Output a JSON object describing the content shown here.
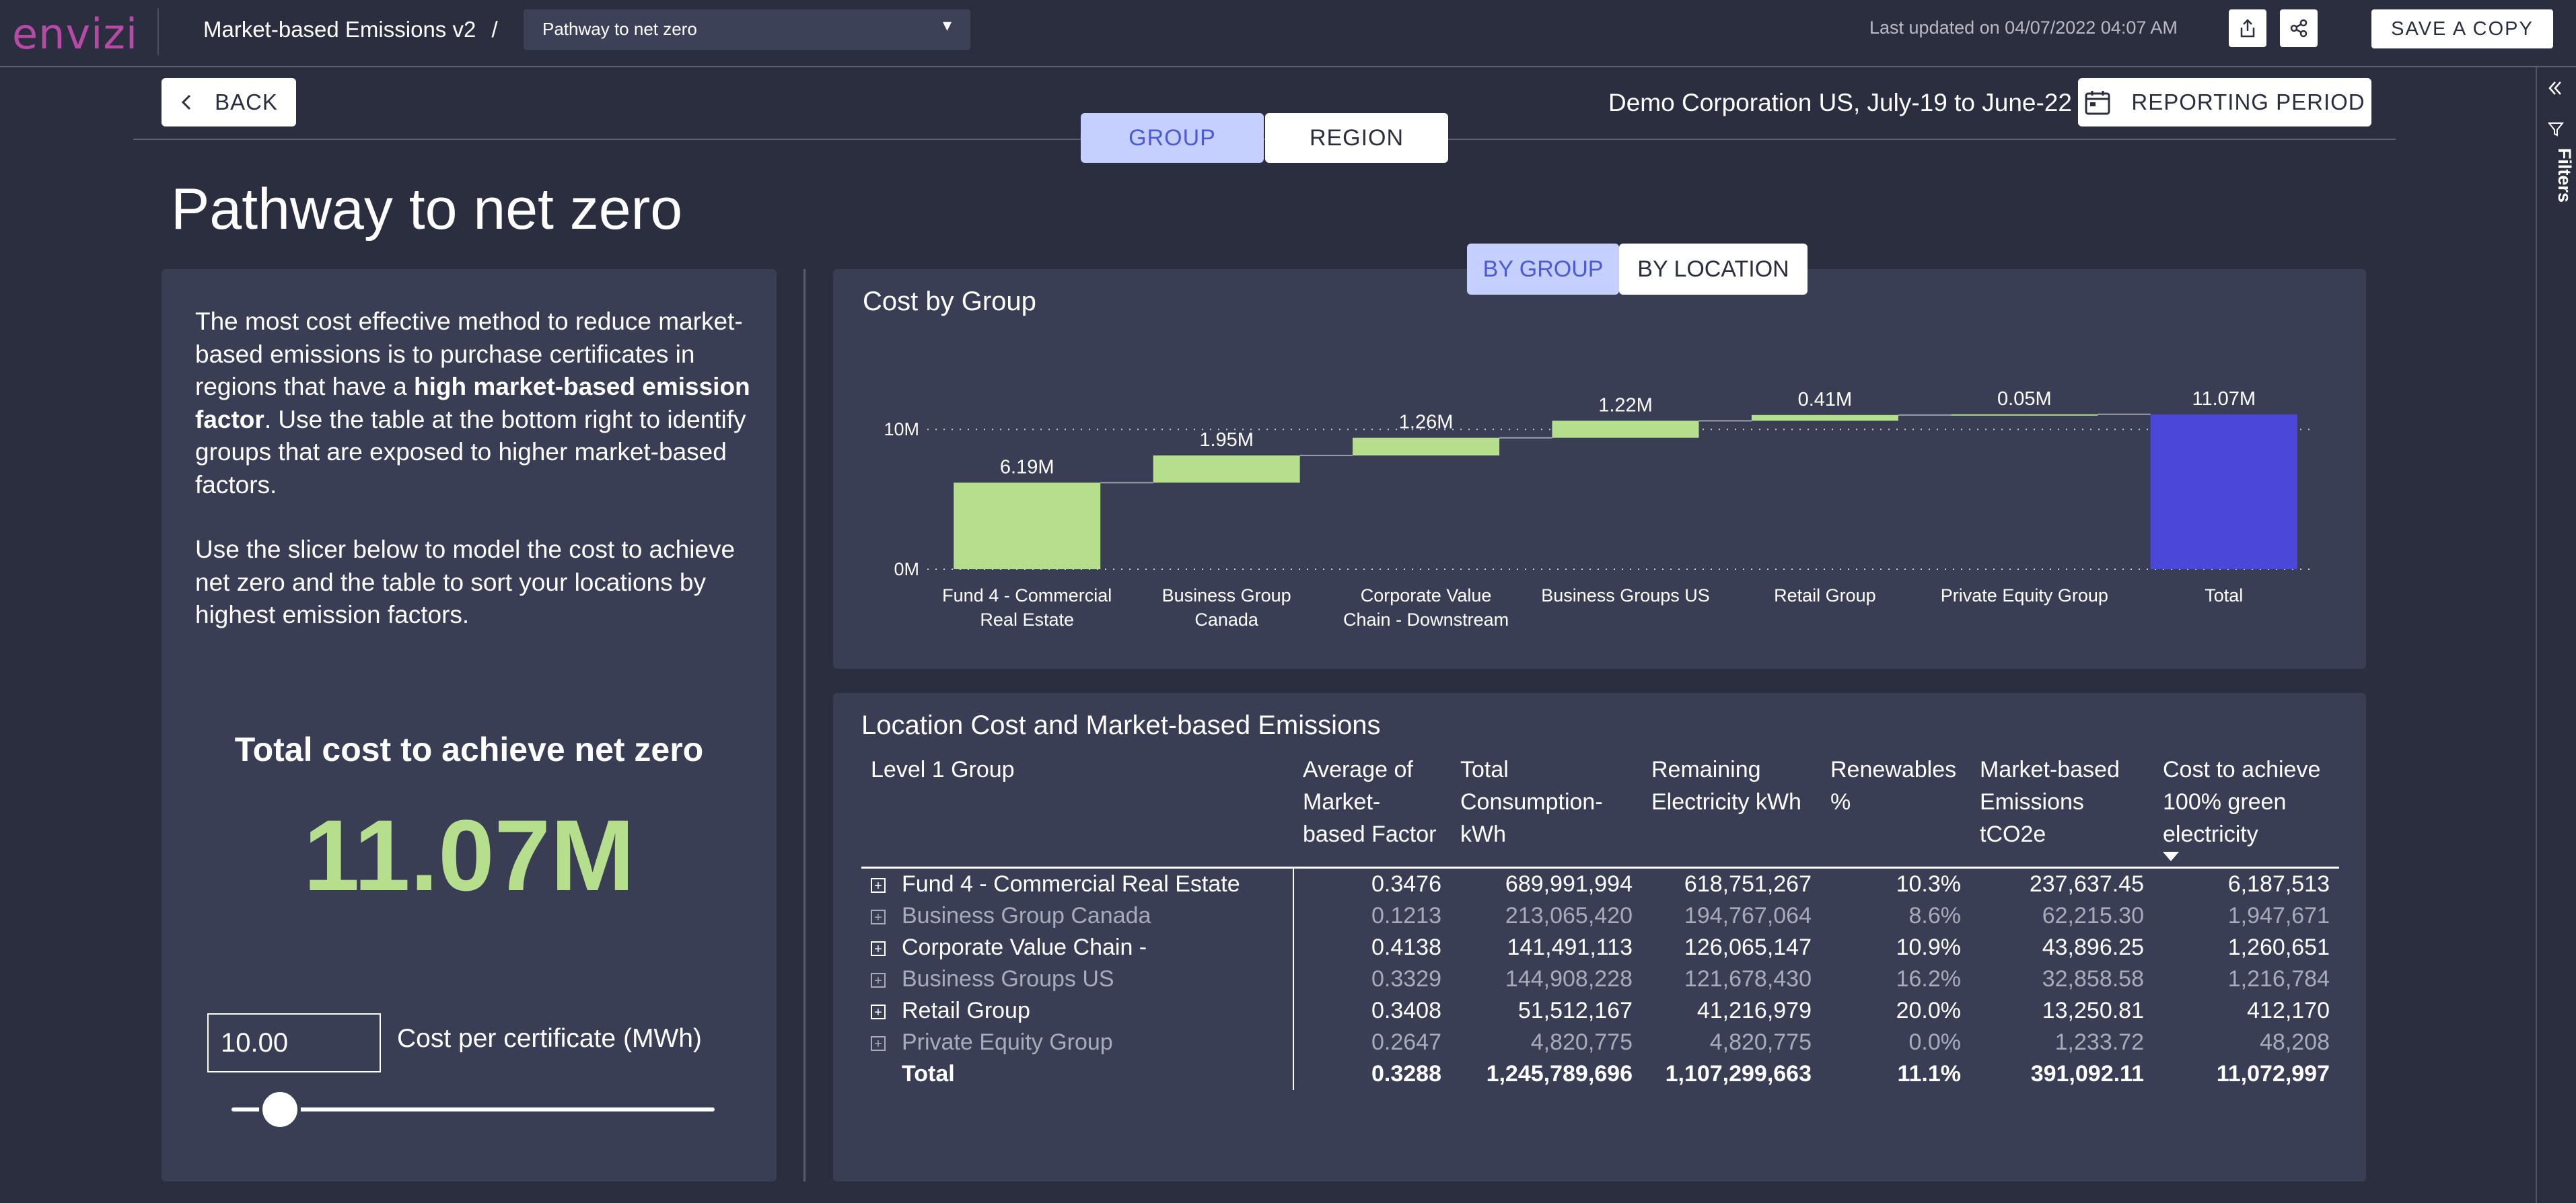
{
  "app": {
    "logo_text": "envizi",
    "report_title": "Market-based Emissions v2",
    "breadcrumb_sep": "/",
    "page_dropdown_value": "Pathway to net zero",
    "last_updated": "Last updated on 04/07/2022 04:07 AM",
    "save_copy_label": "SAVE A COPY",
    "filters_label": "Filters",
    "icons": [
      "share-icon",
      "network-share-icon",
      "collapse-pane-icon",
      "filter-icon"
    ]
  },
  "header": {
    "back_label": "BACK",
    "company_period": "Demo Corporation US, July-19 to June-22",
    "reporting_label": "REPORTING PERIOD",
    "tabs": [
      {
        "label": "GROUP",
        "active": true
      },
      {
        "label": "REGION",
        "active": false
      }
    ],
    "page_title": "Pathway to net zero"
  },
  "left_panel": {
    "intro_part1": "The most cost effective method to reduce market-based emissions is to purchase certificates in regions that have a ",
    "intro_bold": "high market-based emission factor",
    "intro_part2": ". Use the table at the bottom right to identify groups that are exposed to higher market-based factors.",
    "intro_para2": "Use the slicer below to model the cost to achieve net zero and the table to sort your locations by highest emission factors.",
    "total_title": "Total cost to achieve net zero",
    "total_value": "11.07M",
    "cost_input_value": "10.00",
    "cost_input_label": "Cost per certificate (MWh)",
    "slider_fraction": 0.1
  },
  "chart_tabs": [
    {
      "label": "BY GROUP",
      "active": true
    },
    {
      "label": "BY LOCATION",
      "active": false
    }
  ],
  "chart_data": {
    "type": "bar",
    "subtype": "waterfall",
    "title": "Cost by Group",
    "categories": [
      "Fund 4 - Commercial Real Estate",
      "Business Group Canada",
      "Corporate Value Chain - Downstream",
      "Business Groups US",
      "Retail Group",
      "Private Equity Group",
      "Total"
    ],
    "category_lines": [
      [
        "Fund 4 - Commercial",
        "Real Estate"
      ],
      [
        "Business Group",
        "Canada"
      ],
      [
        "Corporate Value",
        "Chain - Downstream"
      ],
      [
        "Business Groups US"
      ],
      [
        "Retail Group"
      ],
      [
        "Private Equity Group"
      ],
      [
        "Total"
      ]
    ],
    "values": [
      6.19,
      1.95,
      1.26,
      1.22,
      0.41,
      0.05,
      11.07
    ],
    "data_labels": [
      "6.19M",
      "1.95M",
      "1.26M",
      "1.22M",
      "0.41M",
      "0.05M",
      "11.07M"
    ],
    "unit": "M",
    "y_ticks": [
      {
        "value": 0,
        "label": "0M"
      },
      {
        "value": 10,
        "label": "10M"
      }
    ],
    "ylim": [
      0,
      12.5
    ],
    "grid": true,
    "colors": {
      "increase": "#b5df8c",
      "total": "#4b47d9"
    }
  },
  "table": {
    "title": "Location Cost and Market-based Emissions",
    "columns": [
      [
        "Level 1 Group"
      ],
      [
        "Average of",
        "Market-",
        "based Factor"
      ],
      [
        "Total",
        "Consumption-",
        "kWh"
      ],
      [
        "Remaining",
        "Electricity kWh"
      ],
      [
        "Renewables",
        "%"
      ],
      [
        "Market-based",
        "Emissions",
        "tCO2e"
      ],
      [
        "Cost to achieve",
        "100% green",
        "electricity"
      ]
    ],
    "rows": [
      {
        "name": "Fund 4 - Commercial Real Estate",
        "cells": [
          "0.3476",
          "689,991,994",
          "618,751,267",
          "10.3%",
          "237,637.45",
          "6,187,513"
        ],
        "style": "bright"
      },
      {
        "name": "Business Group Canada",
        "cells": [
          "0.1213",
          "213,065,420",
          "194,767,064",
          "8.6%",
          "62,215.30",
          "1,947,671"
        ],
        "style": "dim"
      },
      {
        "name": "Corporate Value Chain -",
        "cells": [
          "0.4138",
          "141,491,113",
          "126,065,147",
          "10.9%",
          "43,896.25",
          "1,260,651"
        ],
        "style": "bright"
      },
      {
        "name": "Business Groups US",
        "cells": [
          "0.3329",
          "144,908,228",
          "121,678,430",
          "16.2%",
          "32,858.58",
          "1,216,784"
        ],
        "style": "dim"
      },
      {
        "name": "Retail Group",
        "cells": [
          "0.3408",
          "51,512,167",
          "41,216,979",
          "20.0%",
          "13,250.81",
          "412,170"
        ],
        "style": "bright"
      },
      {
        "name": "Private Equity Group",
        "cells": [
          "0.2647",
          "4,820,775",
          "4,820,775",
          "0.0%",
          "1,233.72",
          "48,208"
        ],
        "style": "dim"
      }
    ],
    "total": {
      "name": "Total",
      "cells": [
        "0.3288",
        "1,245,789,696",
        "1,107,299,663",
        "11.1%",
        "391,092.11",
        "11,072,997"
      ]
    },
    "expander_symbol": "+"
  }
}
